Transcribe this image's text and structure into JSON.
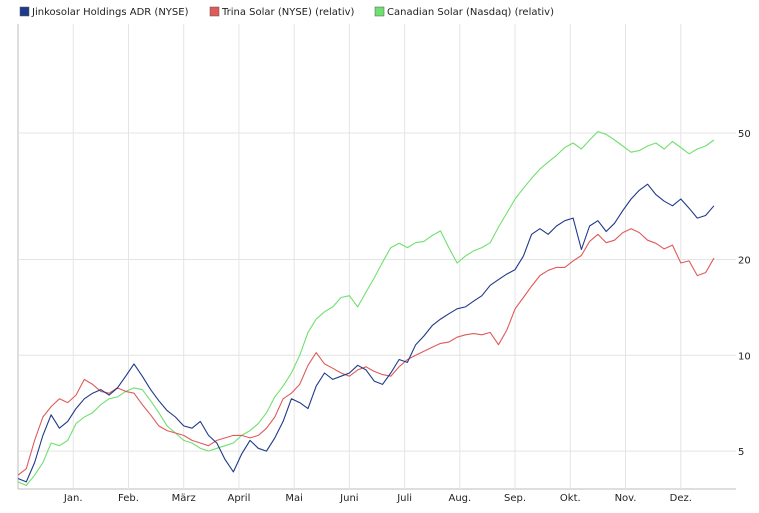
{
  "chart_data": {
    "type": "line",
    "title": "",
    "xlabel": "",
    "ylabel": "",
    "y_scale": "log",
    "ylim": [
      3.8,
      110
    ],
    "y_ticks": [
      5,
      10,
      20,
      50
    ],
    "grid": true,
    "legend_position": "top-left",
    "x_domain": [
      0,
      13
    ],
    "months": [
      {
        "label": "Jan.",
        "x": 1
      },
      {
        "label": "Feb.",
        "x": 2
      },
      {
        "label": "März",
        "x": 3
      },
      {
        "label": "April",
        "x": 4
      },
      {
        "label": "Mai",
        "x": 5
      },
      {
        "label": "Juni",
        "x": 6
      },
      {
        "label": "Juli",
        "x": 7
      },
      {
        "label": "Aug.",
        "x": 8
      },
      {
        "label": "Sep.",
        "x": 9
      },
      {
        "label": "Okt.",
        "x": 10
      },
      {
        "label": "Nov.",
        "x": 11
      },
      {
        "label": "Dez.",
        "x": 12
      }
    ],
    "series": [
      {
        "name": "Jinkosolar Holdings ADR (NYSE)",
        "color": "#1f3a8a",
        "x": [
          0,
          0.15,
          0.3,
          0.45,
          0.6,
          0.75,
          0.9,
          1.05,
          1.2,
          1.35,
          1.5,
          1.65,
          1.8,
          1.95,
          2.1,
          2.25,
          2.4,
          2.55,
          2.7,
          2.85,
          3.0,
          3.15,
          3.3,
          3.45,
          3.6,
          3.75,
          3.9,
          4.05,
          4.2,
          4.35,
          4.5,
          4.65,
          4.8,
          4.95,
          5.1,
          5.25,
          5.4,
          5.55,
          5.7,
          5.85,
          6.0,
          6.15,
          6.3,
          6.45,
          6.6,
          6.75,
          6.9,
          7.05,
          7.2,
          7.35,
          7.5,
          7.65,
          7.8,
          7.95,
          8.1,
          8.25,
          8.4,
          8.55,
          8.7,
          8.85,
          9.0,
          9.15,
          9.3,
          9.45,
          9.6,
          9.75,
          9.9,
          10.05,
          10.2,
          10.35,
          10.5,
          10.65,
          10.8,
          10.95,
          11.1,
          11.25,
          11.4,
          11.55,
          11.7,
          11.85,
          12.0,
          12.15,
          12.3,
          12.45,
          12.6
        ],
        "values": [
          4.1,
          4.0,
          4.6,
          5.6,
          6.5,
          5.9,
          6.2,
          6.8,
          7.3,
          7.6,
          7.8,
          7.5,
          7.9,
          8.6,
          9.4,
          8.6,
          7.8,
          7.2,
          6.7,
          6.4,
          6.0,
          5.9,
          6.2,
          5.6,
          5.3,
          4.7,
          4.3,
          4.9,
          5.4,
          5.1,
          5.0,
          5.5,
          6.2,
          7.3,
          7.1,
          6.8,
          8.0,
          8.8,
          8.4,
          8.6,
          8.8,
          9.3,
          9.0,
          8.3,
          8.1,
          8.8,
          9.7,
          9.5,
          10.8,
          11.5,
          12.4,
          13.0,
          13.5,
          14.0,
          14.2,
          14.8,
          15.4,
          16.6,
          17.3,
          18.0,
          18.6,
          20.5,
          24.0,
          25.0,
          24.0,
          25.5,
          26.5,
          27.0,
          21.5,
          25.5,
          26.5,
          24.5,
          26.0,
          28.5,
          31.0,
          33.0,
          34.5,
          32.0,
          30.5,
          29.5,
          31.0,
          29.0,
          27.0,
          27.5,
          29.5
        ]
      },
      {
        "name": "Trina Solar (NYSE) (relativ)",
        "color": "#e05a5a",
        "x": [
          0,
          0.15,
          0.3,
          0.45,
          0.6,
          0.75,
          0.9,
          1.05,
          1.2,
          1.35,
          1.5,
          1.65,
          1.8,
          1.95,
          2.1,
          2.25,
          2.4,
          2.55,
          2.7,
          2.85,
          3.0,
          3.15,
          3.3,
          3.45,
          3.6,
          3.75,
          3.9,
          4.05,
          4.2,
          4.35,
          4.5,
          4.65,
          4.8,
          4.95,
          5.1,
          5.25,
          5.4,
          5.55,
          5.7,
          5.85,
          6.0,
          6.15,
          6.3,
          6.45,
          6.6,
          6.75,
          6.9,
          7.05,
          7.2,
          7.35,
          7.5,
          7.65,
          7.8,
          7.95,
          8.1,
          8.25,
          8.4,
          8.55,
          8.7,
          8.85,
          9.0,
          9.15,
          9.3,
          9.45,
          9.6,
          9.75,
          9.9,
          10.05,
          10.2,
          10.35,
          10.5,
          10.65,
          10.8,
          10.95,
          11.1,
          11.25,
          11.4,
          11.55,
          11.7,
          11.85,
          12.0,
          12.15,
          12.3,
          12.45,
          12.6
        ],
        "values": [
          4.2,
          4.4,
          5.4,
          6.4,
          6.9,
          7.3,
          7.1,
          7.5,
          8.4,
          8.1,
          7.7,
          7.6,
          7.9,
          7.7,
          7.6,
          7.0,
          6.5,
          6.0,
          5.8,
          5.7,
          5.6,
          5.4,
          5.3,
          5.2,
          5.4,
          5.5,
          5.6,
          5.6,
          5.5,
          5.6,
          5.9,
          6.4,
          7.3,
          7.6,
          8.1,
          9.3,
          10.2,
          9.4,
          9.1,
          8.8,
          8.6,
          9.0,
          9.2,
          8.9,
          8.7,
          8.6,
          9.2,
          9.7,
          10.0,
          10.3,
          10.6,
          10.9,
          11.0,
          11.4,
          11.6,
          11.7,
          11.6,
          11.8,
          10.8,
          12.0,
          14.0,
          15.2,
          16.5,
          17.8,
          18.5,
          18.9,
          18.9,
          19.8,
          20.6,
          22.8,
          24.0,
          22.6,
          23.0,
          24.3,
          25.0,
          24.3,
          23.0,
          22.5,
          21.6,
          22.2,
          19.5,
          19.8,
          17.8,
          18.2,
          20.2
        ]
      },
      {
        "name": "Canadian Solar (Nasdaq) (relativ)",
        "color": "#6fe06f",
        "x": [
          0,
          0.15,
          0.3,
          0.45,
          0.6,
          0.75,
          0.9,
          1.05,
          1.2,
          1.35,
          1.5,
          1.65,
          1.8,
          1.95,
          2.1,
          2.25,
          2.4,
          2.55,
          2.7,
          2.85,
          3.0,
          3.15,
          3.3,
          3.45,
          3.6,
          3.75,
          3.9,
          4.05,
          4.2,
          4.35,
          4.5,
          4.65,
          4.8,
          4.95,
          5.1,
          5.25,
          5.4,
          5.55,
          5.7,
          5.85,
          6.0,
          6.15,
          6.3,
          6.45,
          6.6,
          6.75,
          6.9,
          7.05,
          7.2,
          7.35,
          7.5,
          7.65,
          7.8,
          7.95,
          8.1,
          8.25,
          8.4,
          8.55,
          8.7,
          8.85,
          9.0,
          9.15,
          9.3,
          9.45,
          9.6,
          9.75,
          9.9,
          10.05,
          10.2,
          10.35,
          10.5,
          10.65,
          10.8,
          10.95,
          11.1,
          11.25,
          11.4,
          11.55,
          11.7,
          11.85,
          12.0,
          12.15,
          12.3,
          12.45,
          12.6
        ],
        "values": [
          4.0,
          3.9,
          4.2,
          4.6,
          5.3,
          5.2,
          5.4,
          6.1,
          6.4,
          6.6,
          7.0,
          7.3,
          7.4,
          7.7,
          7.9,
          7.8,
          7.2,
          6.6,
          6.0,
          5.7,
          5.4,
          5.3,
          5.1,
          5.0,
          5.1,
          5.2,
          5.3,
          5.6,
          5.8,
          6.1,
          6.6,
          7.4,
          8.0,
          8.8,
          10.0,
          11.8,
          13.0,
          13.7,
          14.2,
          15.2,
          15.4,
          14.2,
          15.8,
          17.5,
          19.6,
          21.8,
          22.5,
          21.8,
          22.6,
          22.8,
          23.8,
          24.6,
          21.8,
          19.5,
          20.5,
          21.3,
          21.8,
          22.6,
          25.3,
          28.0,
          31.0,
          33.5,
          36.0,
          38.5,
          40.5,
          42.5,
          45.0,
          46.5,
          44.5,
          47.5,
          50.5,
          49.5,
          47.5,
          45.5,
          43.5,
          44.0,
          45.5,
          46.5,
          44.5,
          47.0,
          45.0,
          43.0,
          44.5,
          45.5,
          47.5
        ]
      }
    ]
  }
}
